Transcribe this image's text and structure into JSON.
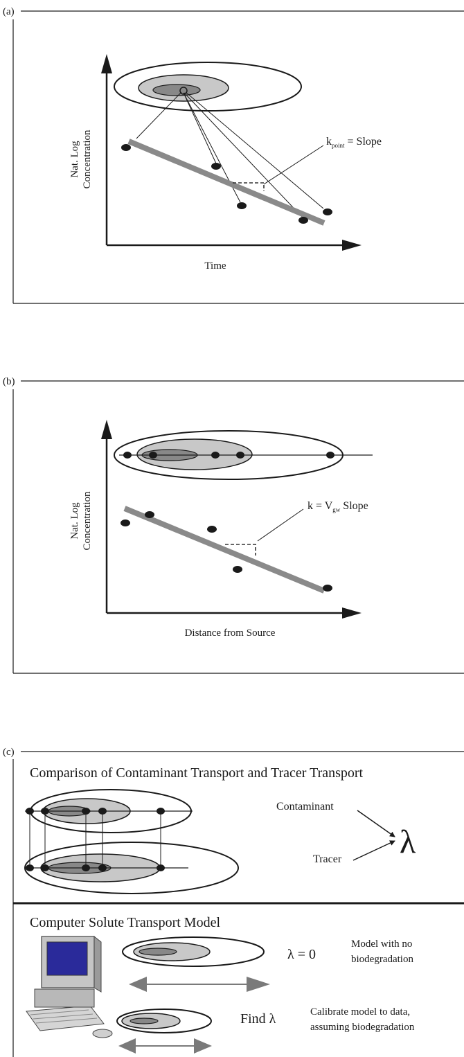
{
  "panel_a": {
    "label": "(a)",
    "ylabel_line1": "Nat. Log",
    "ylabel_line2": "Concentration",
    "xlabel": "Time",
    "annotation_k": "k",
    "annotation_sub": "point",
    "annotation_rest": " = Slope"
  },
  "panel_b": {
    "label": "(b)",
    "ylabel_line1": "Nat. Log",
    "ylabel_line2": "Concentration",
    "xlabel": "Distance from Source",
    "annotation_k": "k = V",
    "annotation_sub": "gw",
    "annotation_rest": " Slope"
  },
  "panel_c": {
    "label": "(c)",
    "title_top": "Comparison of Contaminant Transport and Tracer Transport",
    "contaminant_label": "Contaminant",
    "tracer_label": "Tracer",
    "lambda_symbol": "λ",
    "title_bottom": "Computer Solute Transport Model",
    "lambda_zero": "λ = 0",
    "no_bio_line1": "Model with no",
    "no_bio_line2": "biodegradation",
    "find_lambda": "Find λ",
    "calibrate_line1": "Calibrate model to data,",
    "calibrate_line2": "assuming biodegradation"
  },
  "colors": {
    "line": "#1a1a1a",
    "plume_light": "#c8c8c8",
    "plume_dark": "#888888",
    "trend": "#8a8a8a",
    "monitor_screen": "#2a2a9a",
    "arrow_gray": "#7a7a7a"
  }
}
